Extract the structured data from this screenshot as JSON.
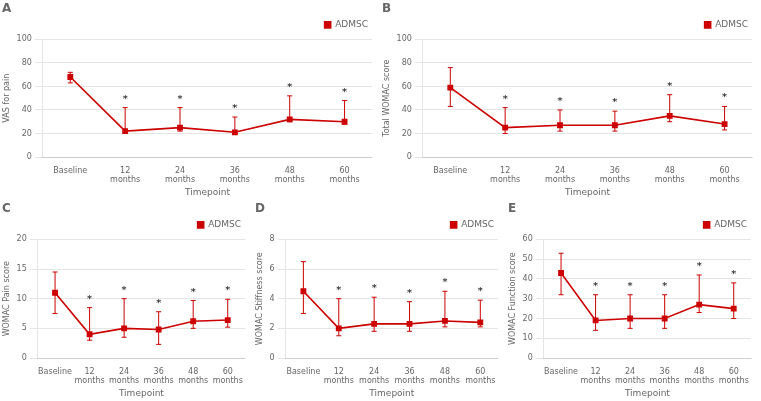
{
  "chart_data": [
    {
      "type": "line",
      "title": "A",
      "x_label": "Timepoint",
      "y_label": "VAS for pain",
      "categories": [
        "Baseline",
        "12\nmonths",
        "24\nmonths",
        "36\nmonths",
        "48\nmonths",
        "60\nmonths"
      ],
      "series": [
        {
          "name": "ADMSC",
          "color": "#cc0000",
          "marker": "square",
          "values": [
            68,
            22,
            25,
            21,
            32,
            30
          ],
          "yerr_lo": [
            5,
            2,
            3,
            1,
            2,
            2
          ],
          "yerr_hi": [
            4,
            20,
            17,
            13,
            20,
            18
          ]
        }
      ],
      "annotations": [
        {
          "text": "*",
          "category": "12\nmonths",
          "color": "#000000"
        },
        {
          "text": "*",
          "category": "24\nmonths",
          "color": "#000000"
        },
        {
          "text": "*",
          "category": "36\nmonths",
          "color": "#000000"
        },
        {
          "text": "*",
          "category": "48\nmonths",
          "color": "#000000"
        },
        {
          "text": "*",
          "category": "60\nmonths",
          "color": "#000000"
        }
      ],
      "ylim": [
        0,
        100
      ],
      "yticks": [
        0,
        20,
        40,
        60,
        80,
        100
      ],
      "grid": "y",
      "legend": "upper right"
    },
    {
      "type": "line",
      "title": "B",
      "x_label": "Timepoint",
      "y_label": "Total WOMAC score",
      "categories": [
        "Baseline",
        "12\nmonths",
        "24\nmonths",
        "36\nmonths",
        "48\nmonths",
        "60\nmonths"
      ],
      "series": [
        {
          "name": "ADMSC",
          "color": "#cc0000",
          "marker": "square",
          "values": [
            59,
            25,
            27,
            27,
            35,
            28
          ],
          "yerr_lo": [
            16,
            5,
            5,
            5,
            5,
            5
          ],
          "yerr_hi": [
            17,
            17,
            13,
            12,
            18,
            15
          ]
        }
      ],
      "annotations": [
        {
          "text": "*",
          "category": "12\nmonths",
          "color": "#000000"
        },
        {
          "text": "*",
          "category": "24\nmonths",
          "color": "#000000"
        },
        {
          "text": "*",
          "category": "36\nmonths",
          "color": "#000000"
        },
        {
          "text": "*",
          "category": "48\nmonths",
          "color": "#000000"
        },
        {
          "text": "*",
          "category": "60\nmonths",
          "color": "#000000"
        }
      ],
      "ylim": [
        0,
        100
      ],
      "yticks": [
        0,
        20,
        40,
        60,
        80,
        100
      ],
      "grid": "y",
      "legend": "upper right"
    },
    {
      "type": "line",
      "title": "C",
      "x_label": "Timepoint",
      "y_label": "WOMAC Pain score",
      "categories": [
        "Baseline",
        "12\nmonths",
        "24\nmonths",
        "36\nmonths",
        "48\nmonths",
        "60\nmonths"
      ],
      "series": [
        {
          "name": "ADMSC",
          "color": "#cc0000",
          "marker": "square",
          "values": [
            11,
            4,
            5,
            4.8,
            6.2,
            6.4
          ],
          "yerr_lo": [
            3.5,
            1,
            1.5,
            2.5,
            1.2,
            1.2
          ],
          "yerr_hi": [
            3.5,
            4.5,
            5,
            3,
            3.5,
            3.5
          ]
        }
      ],
      "annotations": [
        {
          "text": "*",
          "category": "12\nmonths",
          "color": "#000000"
        },
        {
          "text": "*",
          "category": "24\nmonths",
          "color": "#000000"
        },
        {
          "text": "*",
          "category": "36\nmonths",
          "color": "#000000"
        },
        {
          "text": "*",
          "category": "48\nmonths",
          "color": "#000000"
        },
        {
          "text": "*",
          "category": "60\nmonths",
          "color": "#000000"
        }
      ],
      "ylim": [
        0,
        20
      ],
      "yticks": [
        0,
        5,
        10,
        15,
        20
      ],
      "grid": "y",
      "legend": "upper right"
    },
    {
      "type": "line",
      "title": "D",
      "x_label": "Timepoint",
      "y_label": "WOMAC Stiffness score",
      "categories": [
        "Baseline",
        "12\nmonths",
        "24\nmonths",
        "36\nmonths",
        "48\nmonths",
        "60\nmonths"
      ],
      "series": [
        {
          "name": "ADMSC",
          "color": "#cc0000",
          "marker": "square",
          "values": [
            4.5,
            2.0,
            2.3,
            2.3,
            2.5,
            2.4
          ],
          "yerr_lo": [
            1.5,
            0.5,
            0.5,
            0.5,
            0.4,
            0.3
          ],
          "yerr_hi": [
            2.0,
            2.0,
            1.8,
            1.5,
            2.0,
            1.5
          ]
        }
      ],
      "annotations": [
        {
          "text": "*",
          "category": "12\nmonths",
          "color": "#000000"
        },
        {
          "text": "*",
          "category": "24\nmonths",
          "color": "#000000"
        },
        {
          "text": "*",
          "category": "36\nmonths",
          "color": "#000000"
        },
        {
          "text": "*",
          "category": "48\nmonths",
          "color": "#000000"
        },
        {
          "text": "*",
          "category": "60\nmonths",
          "color": "#000000"
        }
      ],
      "ylim": [
        0,
        8
      ],
      "yticks": [
        0,
        2,
        4,
        6,
        8
      ],
      "grid": "y",
      "legend": "upper right"
    },
    {
      "type": "line",
      "title": "E",
      "x_label": "Timepoint",
      "y_label": "WOMAC Function score",
      "categories": [
        "Baseline",
        "12\nmonths",
        "24\nmonths",
        "36\nmonths",
        "48\nmonths",
        "60\nmonths"
      ],
      "series": [
        {
          "name": "ADMSC",
          "color": "#cc0000",
          "marker": "square",
          "values": [
            43,
            19,
            20,
            20,
            27,
            25
          ],
          "yerr_lo": [
            11,
            5,
            5,
            5,
            4,
            5
          ],
          "yerr_hi": [
            10,
            13,
            12,
            12,
            15,
            13
          ]
        }
      ],
      "annotations": [
        {
          "text": "*",
          "category": "12\nmonths",
          "color": "#000000"
        },
        {
          "text": "*",
          "category": "24\nmonths",
          "color": "#000000"
        },
        {
          "text": "*",
          "category": "36\nmonths",
          "color": "#000000"
        },
        {
          "text": "*",
          "category": "48\nmonths",
          "color": "#000000"
        },
        {
          "text": "*",
          "category": "60\nmonths",
          "color": "#000000"
        }
      ],
      "ylim": [
        0,
        60
      ],
      "yticks": [
        0,
        10,
        20,
        30,
        40,
        50,
        60
      ],
      "grid": "y",
      "legend": "upper right"
    }
  ]
}
